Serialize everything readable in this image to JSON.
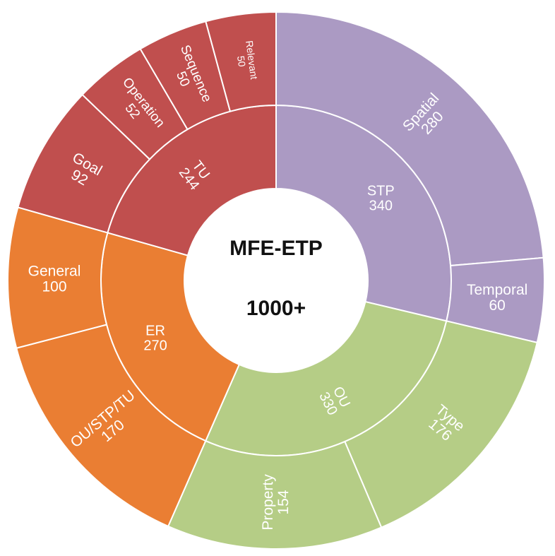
{
  "chart_data": {
    "type": "sunburst",
    "center": {
      "title": "MFE-ETP",
      "total": "1000+"
    },
    "groups": [
      {
        "name": "STP",
        "value": 340,
        "color": "#ab9ac3",
        "children": [
          {
            "name": "Spatial",
            "value": 280
          },
          {
            "name": "Temporal",
            "value": 60
          }
        ]
      },
      {
        "name": "OU",
        "value": 330,
        "color": "#b5cd86",
        "children": [
          {
            "name": "Type",
            "value": 176
          },
          {
            "name": "Property",
            "value": 154
          }
        ]
      },
      {
        "name": "ER",
        "value": 270,
        "color": "#ea7e33",
        "children": [
          {
            "name": "OU/STP/TU",
            "value": 170
          },
          {
            "name": "General",
            "value": 100
          }
        ]
      },
      {
        "name": "TU",
        "value": 244,
        "color": "#c04f4e",
        "children": [
          {
            "name": "Goal",
            "value": 92
          },
          {
            "name": "Operation",
            "value": 52
          },
          {
            "name": "Sequence",
            "value": 50
          },
          {
            "name": "Relevant",
            "value": 50
          }
        ]
      }
    ]
  }
}
